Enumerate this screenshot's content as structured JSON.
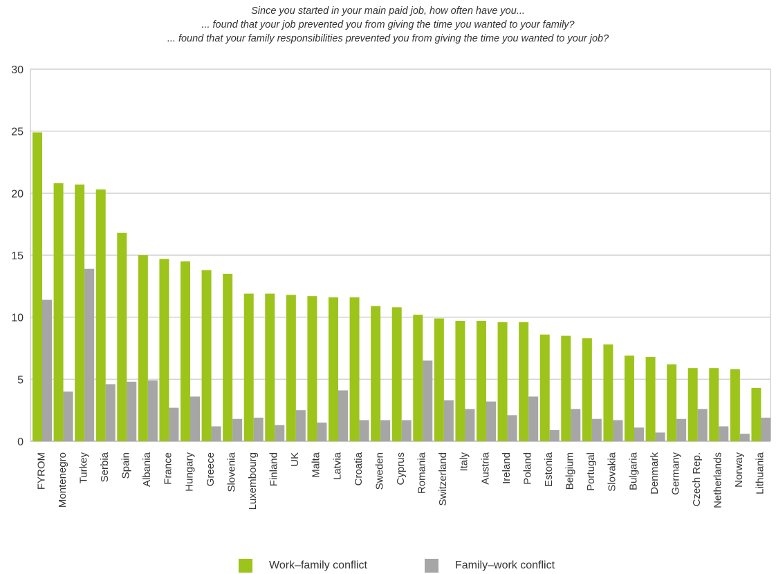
{
  "chart_data": {
    "type": "bar",
    "title": [
      "Since you started in your main paid job, how often have you...",
      "... found that your job prevented you from giving the time you wanted to your family?",
      "... found that your family responsibilities prevented you from giving the time you wanted to your job?"
    ],
    "xlabel": "",
    "ylabel": "",
    "ylim": [
      0,
      30
    ],
    "yticks": [
      0,
      5,
      10,
      15,
      20,
      25,
      30
    ],
    "grid": true,
    "legend_position": "bottom",
    "categories": [
      "FYROM",
      "Montenegro",
      "Turkey",
      "Serbia",
      "Spain",
      "Albania",
      "France",
      "Hungary",
      "Greece",
      "Slovenia",
      "Luxembourg",
      "Finland",
      "UK",
      "Malta",
      "Latvia",
      "Croatia",
      "Sweden",
      "Cyprus",
      "Romania",
      "Switzerland",
      "Italy",
      "Austria",
      "Ireland",
      "Poland",
      "Estonia",
      "Belgium",
      "Portugal",
      "Slovakia",
      "Bulgaria",
      "Denmark",
      "Germany",
      "Czech Rep.",
      "Netherlands",
      "Norway",
      "Lithuania"
    ],
    "series": [
      {
        "name": "Work–family conflict",
        "color": "#9dc41a",
        "values": [
          24.9,
          20.8,
          20.7,
          20.3,
          16.8,
          15.0,
          14.7,
          14.5,
          13.8,
          13.5,
          11.9,
          11.9,
          11.8,
          11.7,
          11.6,
          11.6,
          10.9,
          10.8,
          10.2,
          9.9,
          9.7,
          9.7,
          9.6,
          9.6,
          8.6,
          8.5,
          8.3,
          7.8,
          6.9,
          6.8,
          6.2,
          5.9,
          5.9,
          5.8,
          4.3
        ]
      },
      {
        "name": "Family–work conflict",
        "color": "#a6a6a6",
        "values": [
          11.4,
          4.0,
          13.9,
          4.6,
          4.8,
          4.9,
          2.7,
          3.6,
          1.2,
          1.8,
          1.9,
          1.3,
          2.5,
          1.5,
          4.1,
          1.7,
          1.7,
          1.7,
          6.5,
          3.3,
          2.6,
          3.2,
          2.1,
          3.6,
          0.9,
          2.6,
          1.8,
          1.7,
          1.1,
          0.7,
          1.8,
          2.6,
          1.2,
          0.6,
          1.9
        ]
      }
    ]
  }
}
